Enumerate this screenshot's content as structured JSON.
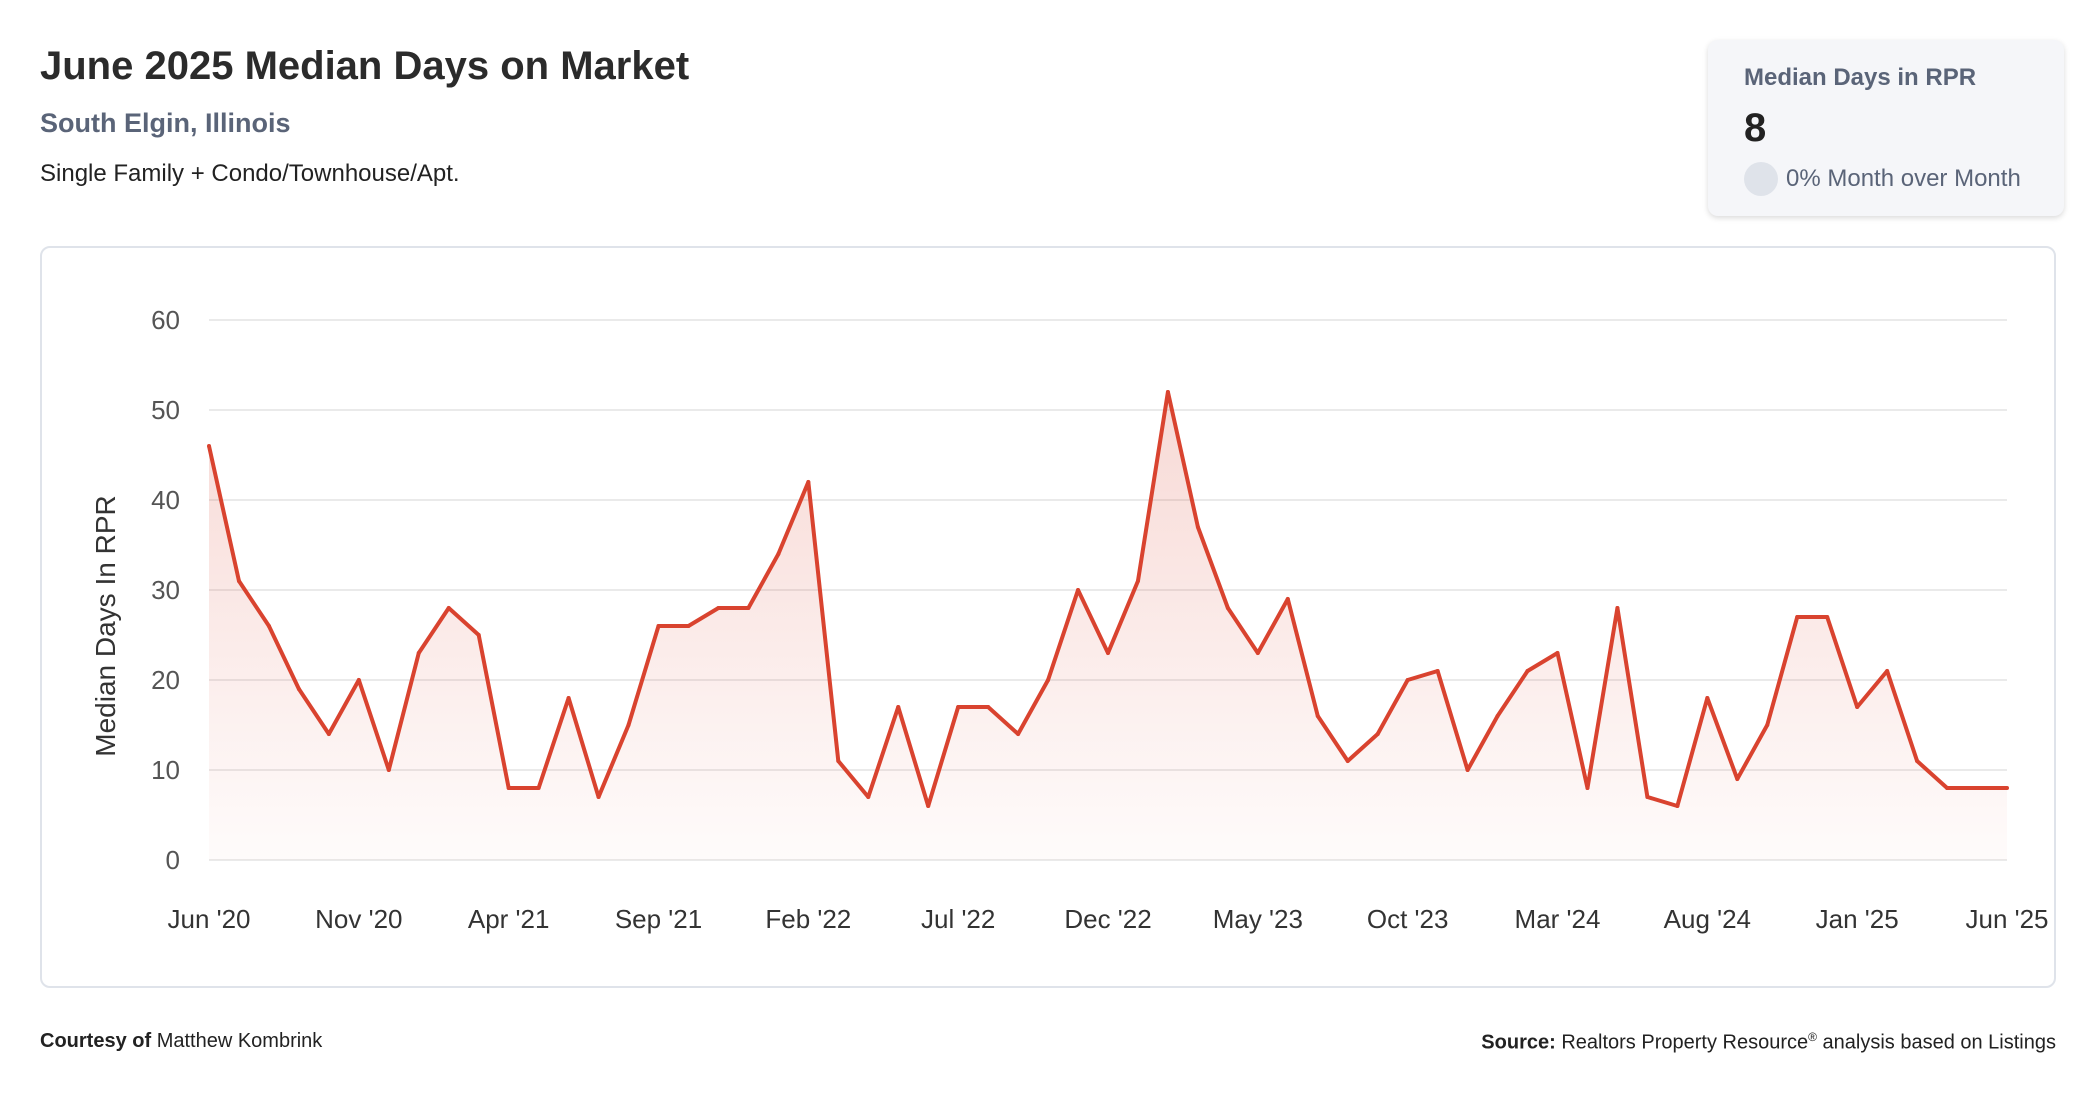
{
  "header": {
    "title": "June 2025 Median Days on Market",
    "location": "South Elgin, Illinois",
    "property_types": "Single Family + Condo/Townhouse/Apt."
  },
  "kpi": {
    "label": "Median Days in RPR",
    "value": "8",
    "change": "0% Month over Month"
  },
  "footer": {
    "courtesy_label": "Courtesy of",
    "courtesy_name": "Matthew Kombrink",
    "source_label": "Source:",
    "source_text_1": "Realtors Property Resource",
    "source_mark": "®",
    "source_text_2": "analysis based on Listings"
  },
  "colors": {
    "line": "#d9432f",
    "grid": "#e3e3e3",
    "text": "#555555"
  },
  "chart_data": {
    "type": "area",
    "ylabel": "Median Days In RPR",
    "xlabel": "",
    "ylim": [
      0,
      60
    ],
    "yticks": [
      0,
      10,
      20,
      30,
      40,
      50,
      60
    ],
    "grid": true,
    "x_tick_labels": [
      "Jun '20",
      "Nov '20",
      "Apr '21",
      "Sep '21",
      "Feb '22",
      "Jul '22",
      "Dec '22",
      "May '23",
      "Oct '23",
      "Mar '24",
      "Aug '24",
      "Jan '25",
      "Jun '25"
    ],
    "x": [
      "Jun '20",
      "Jul '20",
      "Aug '20",
      "Sep '20",
      "Oct '20",
      "Nov '20",
      "Dec '20",
      "Jan '21",
      "Feb '21",
      "Mar '21",
      "Apr '21",
      "May '21",
      "Jun '21",
      "Jul '21",
      "Aug '21",
      "Sep '21",
      "Oct '21",
      "Nov '21",
      "Dec '21",
      "Jan '22",
      "Feb '22",
      "Mar '22",
      "Apr '22",
      "May '22",
      "Jun '22",
      "Jul '22",
      "Aug '22",
      "Sep '22",
      "Oct '22",
      "Nov '22",
      "Dec '22",
      "Jan '23",
      "Feb '23",
      "Mar '23",
      "Apr '23",
      "May '23",
      "Jun '23",
      "Jul '23",
      "Aug '23",
      "Sep '23",
      "Oct '23",
      "Nov '23",
      "Dec '23",
      "Jan '24",
      "Feb '24",
      "Mar '24",
      "Apr '24",
      "May '24",
      "Jun '24",
      "Jul '24",
      "Aug '24",
      "Sep '24",
      "Oct '24",
      "Nov '24",
      "Dec '24",
      "Jan '25",
      "Feb '25",
      "Mar '25",
      "Apr '25",
      "May '25",
      "Jun '25"
    ],
    "series": [
      {
        "values": [
          46,
          31,
          26,
          19,
          14,
          20,
          10,
          23,
          28,
          25,
          8,
          8,
          18,
          7,
          15,
          26,
          26,
          28,
          28,
          34,
          42,
          11,
          7,
          17,
          6,
          17,
          17,
          14,
          20,
          30,
          23,
          31,
          52,
          37,
          28,
          23,
          29,
          16,
          11,
          14,
          20,
          21,
          10,
          16,
          21,
          23,
          8,
          28,
          7,
          6,
          18,
          9,
          15,
          27,
          27,
          17,
          21,
          11,
          8,
          8,
          8
        ]
      }
    ]
  }
}
